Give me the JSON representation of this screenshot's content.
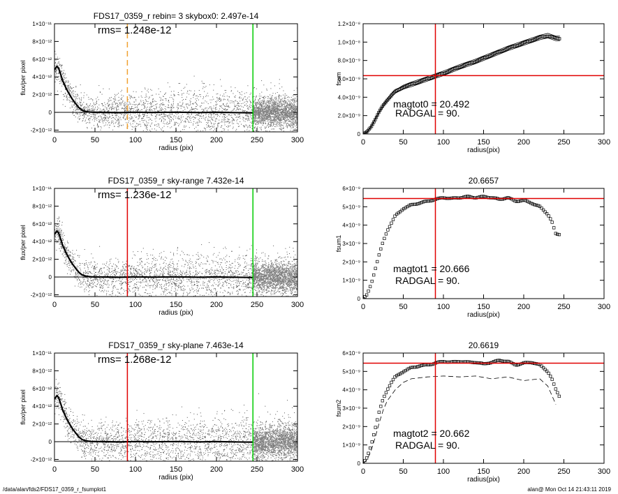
{
  "footer": {
    "left": "/data/alan/fds2/FDS17_0359_r_fsumplot1",
    "right": "alan@  Mon Oct 14 21:43:11 2019"
  },
  "colors": {
    "red": "#e00000",
    "green": "#00cc00",
    "orange": "#f0a030",
    "points": "#808080"
  },
  "chart_data": [
    {
      "type": "scatter",
      "title": "FDS17_0359_r rebin= 3    skybox0:  2.497e-14",
      "rms_text": "rms= 1.248e-12",
      "xlabel": "radius (pix)",
      "ylabel": "flux/per pixel",
      "xlim": [
        0,
        300
      ],
      "ylim": [
        -2.2e-12,
        1e-11
      ],
      "xticks": [
        0,
        50,
        100,
        150,
        200,
        250,
        300
      ],
      "yticks": [
        {
          "label": "-2×10⁻¹²",
          "value": -2e-12
        },
        {
          "label": "0",
          "value": 0
        },
        {
          "label": "2×10⁻¹²",
          "value": 2e-12
        },
        {
          "label": "4×10⁻¹²",
          "value": 4e-12
        },
        {
          "label": "6×10⁻¹²",
          "value": 6e-12
        },
        {
          "label": "8×10⁻¹²",
          "value": 8e-12
        },
        {
          "label": "1×10⁻¹¹",
          "value": 1e-11
        }
      ],
      "vlines": [
        {
          "x": 90,
          "color": "orange",
          "style": "dashed"
        },
        {
          "x": 245,
          "color": "green",
          "style": "solid"
        }
      ],
      "profile": {
        "x": [
          0,
          3,
          5,
          8,
          10,
          14,
          18,
          22,
          26,
          30,
          34,
          38,
          42,
          46,
          50,
          60,
          80,
          100,
          120,
          150,
          180,
          200,
          220,
          245
        ],
        "y": [
          4.8e-12,
          5.2e-12,
          5e-12,
          4.2e-12,
          3.6e-12,
          2.8e-12,
          2.1e-12,
          1.5e-12,
          1e-12,
          5.5e-13,
          2.5e-13,
          1.2e-13,
          6e-14,
          2e-14,
          1e-14,
          0,
          -3e-14,
          2e-14,
          -1e-14,
          2e-14,
          -2e-14,
          1e-14,
          -2e-14,
          -5e-14
        ]
      },
      "scatter_spread": 2.2e-12
    },
    {
      "type": "line",
      "title": "",
      "xlabel": "radius(pix)",
      "ylabel": "fsum",
      "xlim": [
        0,
        300
      ],
      "ylim": [
        0,
        1.2e-08
      ],
      "xticks": [
        0,
        50,
        100,
        150,
        200,
        250,
        300
      ],
      "yticks": [
        {
          "label": "0",
          "value": 0
        },
        {
          "label": "2.0×10⁻⁹",
          "value": 2e-09
        },
        {
          "label": "4.0×10⁻⁹",
          "value": 4e-09
        },
        {
          "label": "6.0×10⁻⁹",
          "value": 6e-09
        },
        {
          "label": "8.0×10⁻⁹",
          "value": 8e-09
        },
        {
          "label": "1.0×10⁻⁸",
          "value": 1e-08
        },
        {
          "label": "1.2×10⁻⁸",
          "value": 1.2e-08
        }
      ],
      "annotations": [
        "magtot0 =  20.492",
        "RADGAL =     90."
      ],
      "vline_x": 90,
      "hline_y": 6.35e-09,
      "band": 2.5e-10,
      "curve": {
        "x": [
          0,
          5,
          10,
          15,
          20,
          25,
          30,
          35,
          40,
          50,
          60,
          70,
          80,
          90,
          100,
          120,
          140,
          160,
          180,
          200,
          220,
          230,
          240,
          245
        ],
        "y": [
          0,
          2e-10,
          8e-10,
          1.6e-09,
          2.4e-09,
          3.1e-09,
          3.7e-09,
          4.2e-09,
          4.6e-09,
          5.1e-09,
          5.4e-09,
          5.7e-09,
          6e-09,
          6.3e-09,
          6.6e-09,
          7.3e-09,
          7.9e-09,
          8.6e-09,
          9.3e-09,
          9.9e-09,
          1.05e-08,
          1.07e-08,
          1.04e-08,
          1.04e-08
        ]
      },
      "dashed_curve": null
    },
    {
      "type": "scatter",
      "title": "FDS17_0359_r sky-range  7.432e-14",
      "rms_text": "rms= 1.236e-12",
      "xlabel": "radius (pix)",
      "ylabel": "flux/per pixel",
      "xlim": [
        0,
        300
      ],
      "ylim": [
        -2.2e-12,
        1e-11
      ],
      "xticks": [
        0,
        50,
        100,
        150,
        200,
        250,
        300
      ],
      "yticks": [
        {
          "label": "-2×10⁻¹²",
          "value": -2e-12
        },
        {
          "label": "0",
          "value": 0
        },
        {
          "label": "2×10⁻¹²",
          "value": 2e-12
        },
        {
          "label": "4×10⁻¹²",
          "value": 4e-12
        },
        {
          "label": "6×10⁻¹²",
          "value": 6e-12
        },
        {
          "label": "8×10⁻¹²",
          "value": 8e-12
        },
        {
          "label": "1×10⁻¹¹",
          "value": 1e-11
        }
      ],
      "vlines": [
        {
          "x": 90,
          "color": "red",
          "style": "solid"
        },
        {
          "x": 245,
          "color": "green",
          "style": "solid"
        }
      ],
      "profile": {
        "x": [
          0,
          3,
          5,
          8,
          10,
          14,
          18,
          22,
          26,
          30,
          34,
          38,
          42,
          46,
          50,
          60,
          80,
          100,
          120,
          150,
          180,
          200,
          220,
          245
        ],
        "y": [
          4.8e-12,
          5.2e-12,
          5e-12,
          4.2e-12,
          3.6e-12,
          2.8e-12,
          2.1e-12,
          1.5e-12,
          1e-12,
          5.5e-13,
          2.5e-13,
          1.2e-13,
          6e-14,
          2e-14,
          1e-14,
          0,
          -3e-14,
          2e-14,
          -1e-14,
          2e-14,
          -2e-14,
          1e-14,
          -2e-14,
          -5e-14
        ]
      },
      "scatter_spread": 2.2e-12
    },
    {
      "type": "line",
      "title": "20.6657",
      "xlabel": "radius(pix)",
      "ylabel": "fsum1",
      "xlim": [
        0,
        300
      ],
      "ylim": [
        0,
        6e-09
      ],
      "xticks": [
        0,
        50,
        100,
        150,
        200,
        250,
        300
      ],
      "yticks": [
        {
          "label": "0",
          "value": 0
        },
        {
          "label": "1×10⁻⁹",
          "value": 1e-09
        },
        {
          "label": "2×10⁻⁹",
          "value": 2e-09
        },
        {
          "label": "3×10⁻⁹",
          "value": 3e-09
        },
        {
          "label": "4×10⁻⁹",
          "value": 4e-09
        },
        {
          "label": "5×10⁻⁹",
          "value": 5e-09
        },
        {
          "label": "6×10⁻⁹",
          "value": 6e-09
        }
      ],
      "annotations": [
        "magtot1 =  20.666",
        "RADGAL =     90."
      ],
      "vline_x": 90,
      "hline_y": 5.45e-09,
      "band": 0,
      "curve": {
        "x": [
          0,
          5,
          10,
          15,
          20,
          25,
          30,
          35,
          40,
          50,
          60,
          70,
          80,
          90,
          100,
          110,
          120,
          130,
          140,
          150,
          160,
          170,
          180,
          190,
          200,
          210,
          220,
          230,
          235,
          240,
          245
        ],
        "y": [
          0,
          2e-10,
          8e-10,
          1.6e-09,
          2.4e-09,
          3.1e-09,
          3.7e-09,
          4.1e-09,
          4.5e-09,
          4.9e-09,
          5.1e-09,
          5.2e-09,
          5.3e-09,
          5.4e-09,
          5.5e-09,
          5.45e-09,
          5.5e-09,
          5.55e-09,
          5.5e-09,
          5.55e-09,
          5.5e-09,
          5.4e-09,
          5.5e-09,
          5.3e-09,
          5.35e-09,
          5.2e-09,
          5e-09,
          4.6e-09,
          4.2e-09,
          3.5e-09,
          3.5e-09
        ]
      },
      "dashed_curve": null
    },
    {
      "type": "scatter",
      "title": "FDS17_0359_r sky-plane  7.463e-14",
      "rms_text": "rms= 1.268e-12",
      "xlabel": "radius (pix)",
      "ylabel": "flux/per pixel",
      "xlim": [
        0,
        300
      ],
      "ylim": [
        -2.2e-12,
        1e-11
      ],
      "xticks": [
        0,
        50,
        100,
        150,
        200,
        250,
        300
      ],
      "yticks": [
        {
          "label": "-2×10⁻¹²",
          "value": -2e-12
        },
        {
          "label": "0",
          "value": 0
        },
        {
          "label": "2×10⁻¹²",
          "value": 2e-12
        },
        {
          "label": "4×10⁻¹²",
          "value": 4e-12
        },
        {
          "label": "6×10⁻¹²",
          "value": 6e-12
        },
        {
          "label": "8×10⁻¹²",
          "value": 8e-12
        },
        {
          "label": "1×10⁻¹¹",
          "value": 1e-11
        }
      ],
      "vlines": [
        {
          "x": 90,
          "color": "red",
          "style": "solid"
        },
        {
          "x": 245,
          "color": "green",
          "style": "solid"
        }
      ],
      "profile": {
        "x": [
          0,
          3,
          5,
          8,
          10,
          14,
          18,
          22,
          26,
          30,
          34,
          38,
          42,
          46,
          50,
          60,
          80,
          100,
          120,
          150,
          180,
          200,
          220,
          245
        ],
        "y": [
          4.8e-12,
          5.2e-12,
          5e-12,
          4.2e-12,
          3.6e-12,
          2.8e-12,
          2.1e-12,
          1.5e-12,
          1e-12,
          5.5e-13,
          2.5e-13,
          1.2e-13,
          6e-14,
          2e-14,
          1e-14,
          0,
          -3e-14,
          2e-14,
          -1e-14,
          2e-14,
          -2e-14,
          1e-14,
          -2e-14,
          -5e-14
        ]
      },
      "scatter_spread": 2.4e-12
    },
    {
      "type": "line",
      "title": "20.6619",
      "xlabel": "radius(pix)",
      "ylabel": "fsum2",
      "xlim": [
        0,
        300
      ],
      "ylim": [
        0,
        6e-09
      ],
      "xticks": [
        0,
        50,
        100,
        150,
        200,
        250,
        300
      ],
      "yticks": [
        {
          "label": "0",
          "value": 0
        },
        {
          "label": "1×10⁻⁹",
          "value": 1e-09
        },
        {
          "label": "2×10⁻⁹",
          "value": 2e-09
        },
        {
          "label": "3×10⁻⁹",
          "value": 3e-09
        },
        {
          "label": "4×10⁻⁹",
          "value": 4e-09
        },
        {
          "label": "5×10⁻⁹",
          "value": 5e-09
        },
        {
          "label": "6×10⁻⁹",
          "value": 6e-09
        }
      ],
      "annotations": [
        "magtot2 =  20.662",
        "RADGAL =     90."
      ],
      "vline_x": 90,
      "hline_y": 5.45e-09,
      "band": 0,
      "curve": {
        "x": [
          0,
          5,
          10,
          15,
          20,
          25,
          30,
          35,
          40,
          50,
          60,
          70,
          80,
          90,
          100,
          110,
          120,
          130,
          140,
          150,
          160,
          170,
          180,
          190,
          200,
          210,
          220,
          230,
          235,
          240,
          245
        ],
        "y": [
          0,
          3e-10,
          1e-09,
          1.9e-09,
          2.8e-09,
          3.5e-09,
          4e-09,
          4.4e-09,
          4.7e-09,
          5e-09,
          5.2e-09,
          5.3e-09,
          5.35e-09,
          5.45e-09,
          5.55e-09,
          5.5e-09,
          5.55e-09,
          5.5e-09,
          5.5e-09,
          5.4e-09,
          5.5e-09,
          5.6e-09,
          5.55e-09,
          5.35e-09,
          5.45e-09,
          5.5e-09,
          5.35e-09,
          5e-09,
          4.6e-09,
          4e-09,
          3.6e-09
        ]
      },
      "dashed_curve": {
        "x": [
          0,
          5,
          10,
          15,
          20,
          25,
          30,
          40,
          50,
          60,
          80,
          100,
          120,
          140,
          160,
          180,
          200,
          220,
          230,
          240
        ],
        "y": [
          0,
          2e-10,
          7e-10,
          1.4e-09,
          2.2e-09,
          2.9e-09,
          3.4e-09,
          4e-09,
          4.4e-09,
          4.6e-09,
          4.7e-09,
          4.75e-09,
          4.7e-09,
          4.75e-09,
          4.6e-09,
          4.7e-09,
          4.5e-09,
          4.6e-09,
          4.2e-09,
          3.2e-09
        ]
      }
    }
  ]
}
